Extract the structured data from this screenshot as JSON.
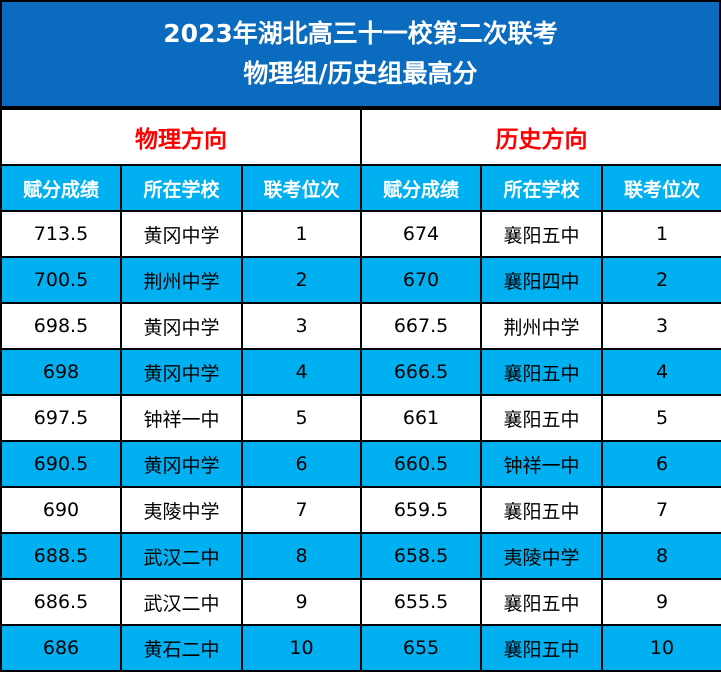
{
  "header": {
    "title_line1": "2023年湖北高三十一校第二次联考",
    "title_line2": "物理组/历史组最高分"
  },
  "sections": {
    "physics": "物理方向",
    "history": "历史方向"
  },
  "columns": [
    "赋分成绩",
    "所在学校",
    "联考位次",
    "赋分成绩",
    "所在学校",
    "联考位次"
  ],
  "rows": [
    [
      "713.5",
      "黄冈中学",
      "1",
      "674",
      "襄阳五中",
      "1"
    ],
    [
      "700.5",
      "荆州中学",
      "2",
      "670",
      "襄阳四中",
      "2"
    ],
    [
      "698.5",
      "黄冈中学",
      "3",
      "667.5",
      "荆州中学",
      "3"
    ],
    [
      "698",
      "黄冈中学",
      "4",
      "666.5",
      "襄阳五中",
      "4"
    ],
    [
      "697.5",
      "钟祥一中",
      "5",
      "661",
      "襄阳五中",
      "5"
    ],
    [
      "690.5",
      "黄冈中学",
      "6",
      "660.5",
      "钟祥一中",
      "6"
    ],
    [
      "690",
      "夷陵中学",
      "7",
      "659.5",
      "襄阳五中",
      "7"
    ],
    [
      "688.5",
      "武汉二中",
      "8",
      "658.5",
      "夷陵中学",
      "8"
    ],
    [
      "686.5",
      "武汉二中",
      "9",
      "655.5",
      "襄阳五中",
      "9"
    ],
    [
      "686",
      "黄石二中",
      "10",
      "655",
      "襄阳五中",
      "10"
    ]
  ],
  "colors": {
    "header_bg": "#0b6cbf",
    "accent_blue": "#00b0f0",
    "section_title": "#ff0000"
  }
}
